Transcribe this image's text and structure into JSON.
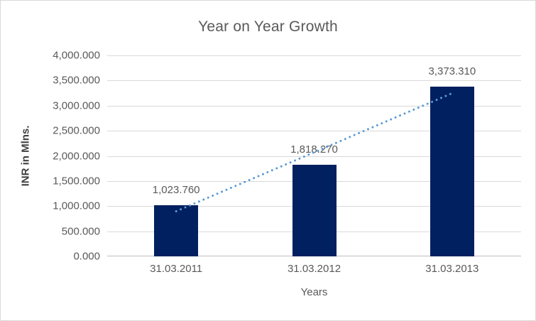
{
  "chart_data": {
    "type": "bar",
    "title": "Year on Year Growth",
    "xlabel": "Years",
    "ylabel": "INR in Mlns.",
    "categories": [
      "31.03.2011",
      "31.03.2012",
      "31.03.2013"
    ],
    "values": [
      1023.76,
      1818.27,
      3373.31
    ],
    "value_labels": [
      "1,023.760",
      "1,818.270",
      "3,373.310"
    ],
    "ylim": [
      0,
      4000
    ],
    "ytick_step": 500,
    "ytick_labels": [
      "0.000",
      "500.000",
      "1,000.000",
      "1,500.000",
      "2,000.000",
      "2,500.000",
      "3,000.000",
      "3,500.000",
      "4,000.000"
    ],
    "grid": true,
    "legend": "none",
    "bar_color": "#002060",
    "trendline": {
      "type": "linear",
      "style": "dotted",
      "color": "#5b9bd5"
    },
    "gridline_color": "#d9d9d9",
    "axis_line_color": "#bfbfbf",
    "text_color": "#595959"
  }
}
